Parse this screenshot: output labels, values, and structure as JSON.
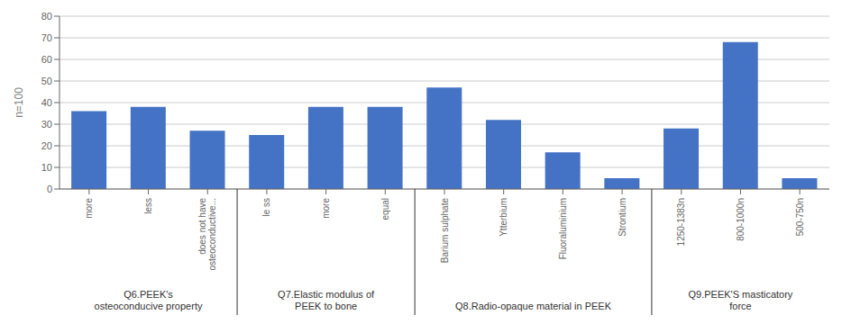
{
  "chart_data": {
    "type": "bar",
    "ylabel": "n=100",
    "groups": [
      {
        "label": "Q6.PEEK's\nosteoconducive property",
        "categories": [
          "more",
          "less",
          "does not have\nosteoconductive..."
        ],
        "values": [
          36,
          38,
          27
        ]
      },
      {
        "label": "Q7.Elastic modulus of\nPEEK to bone",
        "categories": [
          "le ss",
          "more",
          "equal"
        ],
        "values": [
          25,
          38,
          38
        ]
      },
      {
        "label": "Q8.Radio-opaque material in PEEK",
        "categories": [
          "Barium sulphate",
          "Ytterbium",
          "Fluoraluminium",
          "Strontium"
        ],
        "values": [
          47,
          32,
          17,
          5
        ]
      },
      {
        "label": "Q9.PEEK'S masticatory\nforce",
        "categories": [
          "1250-1383n",
          "800-1000n",
          "500-750n"
        ],
        "values": [
          28,
          68,
          5
        ]
      }
    ],
    "color": "#4472c4",
    "ylim": [
      0,
      80
    ],
    "yticks": [
      0,
      10,
      20,
      30,
      40,
      50,
      60,
      70,
      80
    ],
    "grid": true
  }
}
